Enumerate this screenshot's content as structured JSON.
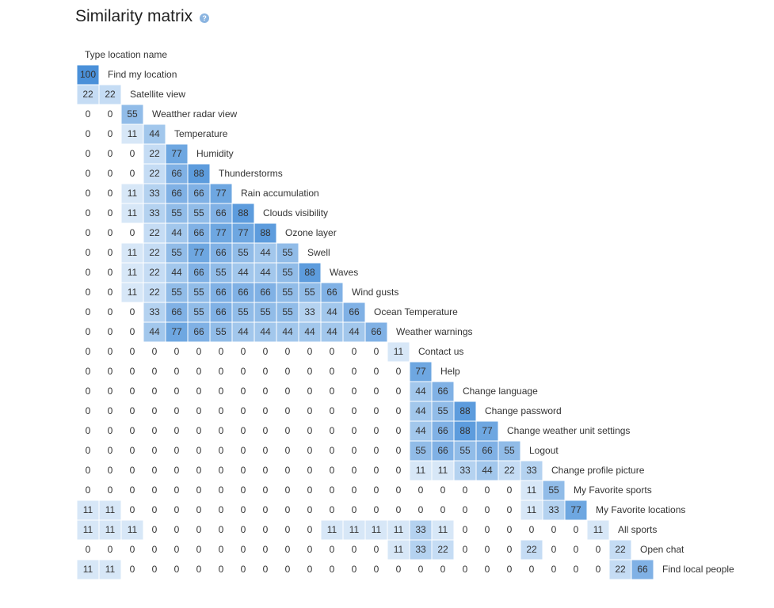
{
  "header": {
    "title": "Similarity matrix",
    "help_icon": "?"
  },
  "top_label": "Type location name",
  "colors": {
    "zero": "#ffffff",
    "low": "#e8f2fb",
    "high": "#4a90d9",
    "grid": "#ffffff"
  },
  "chart_data": {
    "type": "heatmap",
    "title": "Similarity matrix",
    "labels": [
      "Find my location",
      "Satellite view",
      "Weatther radar view",
      "Temperature",
      "Humidity",
      "Thunderstorms",
      "Rain accumulation",
      "Clouds visibility",
      "Ozone layer",
      "Swell",
      "Waves",
      "Wind gusts",
      "Ocean Temperature",
      "Weather warnings",
      "Contact us",
      "Help",
      "Change language",
      "Change password",
      "Change weather unit settings",
      "Logout",
      "Change profile picture",
      "My Favorite sports",
      "My Favorite locations",
      "All sports",
      "Open chat",
      "Find local people"
    ],
    "rows": [
      [
        100
      ],
      [
        22,
        22
      ],
      [
        0,
        0,
        55
      ],
      [
        0,
        0,
        11,
        44
      ],
      [
        0,
        0,
        0,
        22,
        77
      ],
      [
        0,
        0,
        0,
        22,
        66,
        88
      ],
      [
        0,
        0,
        11,
        33,
        66,
        66,
        77
      ],
      [
        0,
        0,
        11,
        33,
        55,
        55,
        66,
        88
      ],
      [
        0,
        0,
        0,
        22,
        44,
        66,
        77,
        77,
        88
      ],
      [
        0,
        0,
        11,
        22,
        55,
        77,
        66,
        55,
        44,
        55
      ],
      [
        0,
        0,
        11,
        22,
        44,
        66,
        55,
        44,
        44,
        55,
        88
      ],
      [
        0,
        0,
        11,
        22,
        55,
        55,
        66,
        66,
        66,
        55,
        55,
        66
      ],
      [
        0,
        0,
        0,
        33,
        66,
        55,
        66,
        55,
        55,
        55,
        33,
        44,
        66
      ],
      [
        0,
        0,
        0,
        44,
        77,
        66,
        55,
        44,
        44,
        44,
        44,
        44,
        44,
        66
      ],
      [
        0,
        0,
        0,
        0,
        0,
        0,
        0,
        0,
        0,
        0,
        0,
        0,
        0,
        0,
        11
      ],
      [
        0,
        0,
        0,
        0,
        0,
        0,
        0,
        0,
        0,
        0,
        0,
        0,
        0,
        0,
        0,
        77
      ],
      [
        0,
        0,
        0,
        0,
        0,
        0,
        0,
        0,
        0,
        0,
        0,
        0,
        0,
        0,
        0,
        44,
        66
      ],
      [
        0,
        0,
        0,
        0,
        0,
        0,
        0,
        0,
        0,
        0,
        0,
        0,
        0,
        0,
        0,
        44,
        55,
        88
      ],
      [
        0,
        0,
        0,
        0,
        0,
        0,
        0,
        0,
        0,
        0,
        0,
        0,
        0,
        0,
        0,
        44,
        66,
        88,
        77
      ],
      [
        0,
        0,
        0,
        0,
        0,
        0,
        0,
        0,
        0,
        0,
        0,
        0,
        0,
        0,
        0,
        55,
        66,
        55,
        66,
        55
      ],
      [
        0,
        0,
        0,
        0,
        0,
        0,
        0,
        0,
        0,
        0,
        0,
        0,
        0,
        0,
        0,
        11,
        11,
        33,
        44,
        22,
        33
      ],
      [
        0,
        0,
        0,
        0,
        0,
        0,
        0,
        0,
        0,
        0,
        0,
        0,
        0,
        0,
        0,
        0,
        0,
        0,
        0,
        0,
        11,
        55
      ],
      [
        11,
        11,
        0,
        0,
        0,
        0,
        0,
        0,
        0,
        0,
        0,
        0,
        0,
        0,
        0,
        0,
        0,
        0,
        0,
        0,
        11,
        33,
        77
      ],
      [
        11,
        11,
        11,
        0,
        0,
        0,
        0,
        0,
        0,
        0,
        0,
        11,
        11,
        11,
        11,
        33,
        11,
        0,
        0,
        0,
        0,
        0,
        0,
        11
      ],
      [
        0,
        0,
        0,
        0,
        0,
        0,
        0,
        0,
        0,
        0,
        0,
        0,
        0,
        0,
        11,
        33,
        22,
        0,
        0,
        0,
        22,
        0,
        0,
        0,
        22
      ],
      [
        11,
        11,
        0,
        0,
        0,
        0,
        0,
        0,
        0,
        0,
        0,
        0,
        0,
        0,
        0,
        0,
        0,
        0,
        0,
        0,
        0,
        0,
        0,
        0,
        22,
        66
      ]
    ],
    "value_range": [
      0,
      100
    ]
  }
}
